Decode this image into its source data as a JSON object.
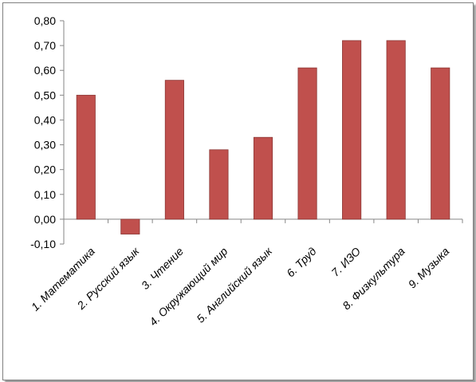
{
  "chart_data": {
    "type": "bar",
    "title": "",
    "xlabel": "",
    "ylabel": "",
    "categories": [
      "1. Математика",
      "2. Русский язык",
      "3. Чтение",
      "4. Окружающий  мир",
      "5. Английский язык",
      "6. Труд",
      "7. ИЗО",
      "8. Физкультура",
      "9. Музыка"
    ],
    "values": [
      0.5,
      -0.06,
      0.56,
      0.28,
      0.33,
      0.61,
      0.72,
      0.72,
      0.61
    ],
    "ylim": [
      -0.1,
      0.8
    ],
    "yticks": [
      0.8,
      0.7,
      0.6,
      0.5,
      0.4,
      0.3,
      0.2,
      0.1,
      0.0,
      -0.1
    ],
    "ytick_labels": [
      "0,80",
      "0,70",
      "0,60",
      "0,50",
      "0,40",
      "0,30",
      "0,20",
      "0,10",
      "0,00",
      "-0,10"
    ],
    "grid": false,
    "legend": "none",
    "colors": {
      "bar_fill": "#c0504d",
      "bar_stroke": "#8c3836",
      "axis": "#868686"
    }
  }
}
